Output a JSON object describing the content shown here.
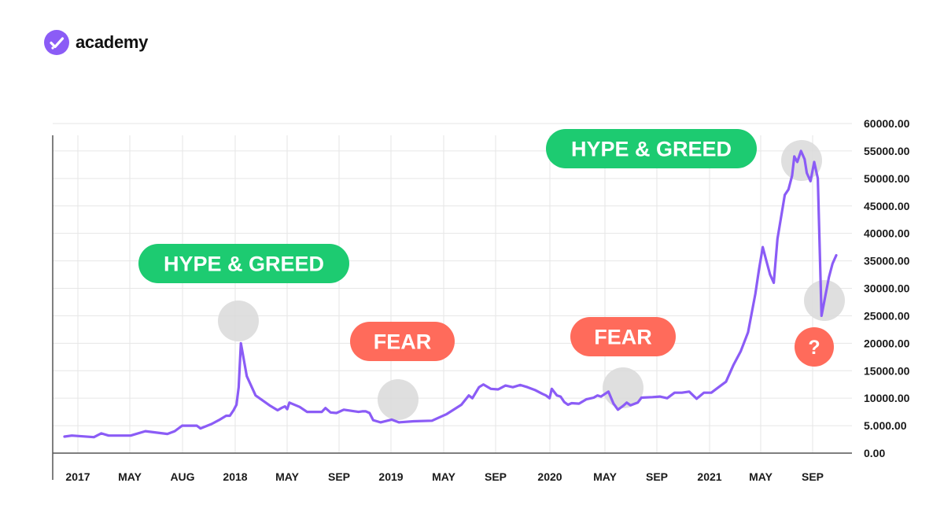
{
  "brand": {
    "name": "academy",
    "icon": "checkmark-icon",
    "color": "#8B5CF6"
  },
  "colors": {
    "line": "#8B5CF6",
    "greed": "#1DCB71",
    "fear": "#FF6B5B",
    "marker": "#D9D9D9",
    "grid": "#E6E6E6",
    "axis": "#555555",
    "label": "#1A1A1A"
  },
  "chart_data": {
    "type": "line",
    "title": "",
    "xlabel": "",
    "ylabel": "",
    "ylim": [
      0,
      60000
    ],
    "y_ticks": [
      "0.00",
      "5.000.00",
      "10000.00",
      "15000.00",
      "20000.00",
      "25000.00",
      "30000.00",
      "35000.00",
      "40000.00",
      "45000.00",
      "50000.00",
      "55000.00",
      "60000.00"
    ],
    "x_ticks": [
      "2017",
      "MAY",
      "AUG",
      "2018",
      "MAY",
      "SEP",
      "2019",
      "MAY",
      "SEP",
      "2020",
      "MAY",
      "SEP",
      "2021",
      "MAY",
      "SEP"
    ],
    "grid": true,
    "y_axis_position": "right",
    "series": [
      {
        "values": [
          [
            0,
            3000
          ],
          [
            1,
            3200
          ],
          [
            4,
            2900
          ],
          [
            5,
            3600
          ],
          [
            6,
            3200
          ],
          [
            9,
            3200
          ],
          [
            11,
            4000
          ],
          [
            14,
            3500
          ],
          [
            15,
            4000
          ],
          [
            16,
            5000
          ],
          [
            18,
            5000
          ],
          [
            18.5,
            4500
          ],
          [
            20,
            5300
          ],
          [
            21,
            6000
          ],
          [
            22,
            6800
          ],
          [
            22.5,
            6800
          ],
          [
            23,
            7800
          ],
          [
            23.4,
            8800
          ],
          [
            23.7,
            12000
          ],
          [
            24,
            20000
          ],
          [
            24.8,
            14000
          ],
          [
            26,
            10500
          ],
          [
            28,
            8600
          ],
          [
            29,
            7800
          ],
          [
            29.5,
            8200
          ],
          [
            30,
            8500
          ],
          [
            30.3,
            8000
          ],
          [
            30.6,
            9200
          ],
          [
            32,
            8400
          ],
          [
            33,
            7500
          ],
          [
            35,
            7500
          ],
          [
            35.5,
            8200
          ],
          [
            36.2,
            7400
          ],
          [
            37,
            7300
          ],
          [
            38,
            7900
          ],
          [
            40,
            7500
          ],
          [
            40.5,
            7600
          ],
          [
            41,
            7600
          ],
          [
            41.5,
            7300
          ],
          [
            42,
            6000
          ],
          [
            43,
            5600
          ],
          [
            44.5,
            6100
          ],
          [
            45.5,
            5600
          ],
          [
            47.5,
            5800
          ],
          [
            50,
            5900
          ],
          [
            51,
            6500
          ],
          [
            52,
            7100
          ],
          [
            54,
            8800
          ],
          [
            55,
            10500
          ],
          [
            55.5,
            10000
          ],
          [
            56.4,
            12000
          ],
          [
            57,
            12500
          ],
          [
            58,
            11700
          ],
          [
            59,
            11600
          ],
          [
            60,
            12300
          ],
          [
            61,
            12000
          ],
          [
            62,
            12400
          ],
          [
            63,
            12000
          ],
          [
            64,
            11500
          ],
          [
            65,
            10800
          ],
          [
            65.5,
            10500
          ],
          [
            66,
            10000
          ],
          [
            66.3,
            11700
          ],
          [
            67,
            10500
          ],
          [
            67.5,
            10300
          ],
          [
            68,
            9300
          ],
          [
            68.5,
            8800
          ],
          [
            69,
            9100
          ],
          [
            70,
            9000
          ],
          [
            71,
            9800
          ],
          [
            72,
            10100
          ],
          [
            72.5,
            10500
          ],
          [
            73,
            10300
          ],
          [
            74,
            11200
          ],
          [
            74.7,
            9000
          ],
          [
            75.3,
            7900
          ],
          [
            76,
            8600
          ],
          [
            76.5,
            9200
          ],
          [
            77,
            8700
          ],
          [
            78,
            9200
          ],
          [
            78.5,
            10100
          ],
          [
            80,
            10200
          ],
          [
            81,
            10300
          ],
          [
            82,
            10000
          ],
          [
            83,
            11000
          ],
          [
            84,
            11000
          ],
          [
            85,
            11200
          ],
          [
            86,
            9900
          ],
          [
            87,
            11000
          ],
          [
            88,
            11000
          ],
          [
            89,
            12000
          ],
          [
            90,
            13000
          ],
          [
            91,
            16000
          ],
          [
            92,
            18500
          ],
          [
            93,
            22000
          ],
          [
            94,
            29000
          ],
          [
            94.5,
            33500
          ],
          [
            95,
            37500
          ],
          [
            95.5,
            35000
          ],
          [
            96,
            32500
          ],
          [
            96.5,
            31000
          ],
          [
            97,
            39000
          ],
          [
            98,
            47000
          ],
          [
            98.5,
            48000
          ],
          [
            99,
            50500
          ],
          [
            99.3,
            54000
          ],
          [
            99.7,
            53000
          ],
          [
            100.2,
            55000
          ],
          [
            100.7,
            53500
          ],
          [
            101,
            51000
          ],
          [
            101.5,
            49500
          ],
          [
            102,
            53000
          ],
          [
            102.5,
            50000
          ],
          [
            103,
            25000
          ],
          [
            104,
            32000
          ],
          [
            104.5,
            34500
          ],
          [
            105,
            36000
          ]
        ]
      }
    ],
    "annotations": [
      {
        "text": "HYPE & GREED",
        "type": "greed"
      },
      {
        "text": "FEAR",
        "type": "fear"
      },
      {
        "text": "FEAR",
        "type": "fear"
      },
      {
        "text": "HYPE & GREED",
        "type": "greed"
      },
      {
        "text": "?",
        "type": "fear"
      }
    ]
  }
}
